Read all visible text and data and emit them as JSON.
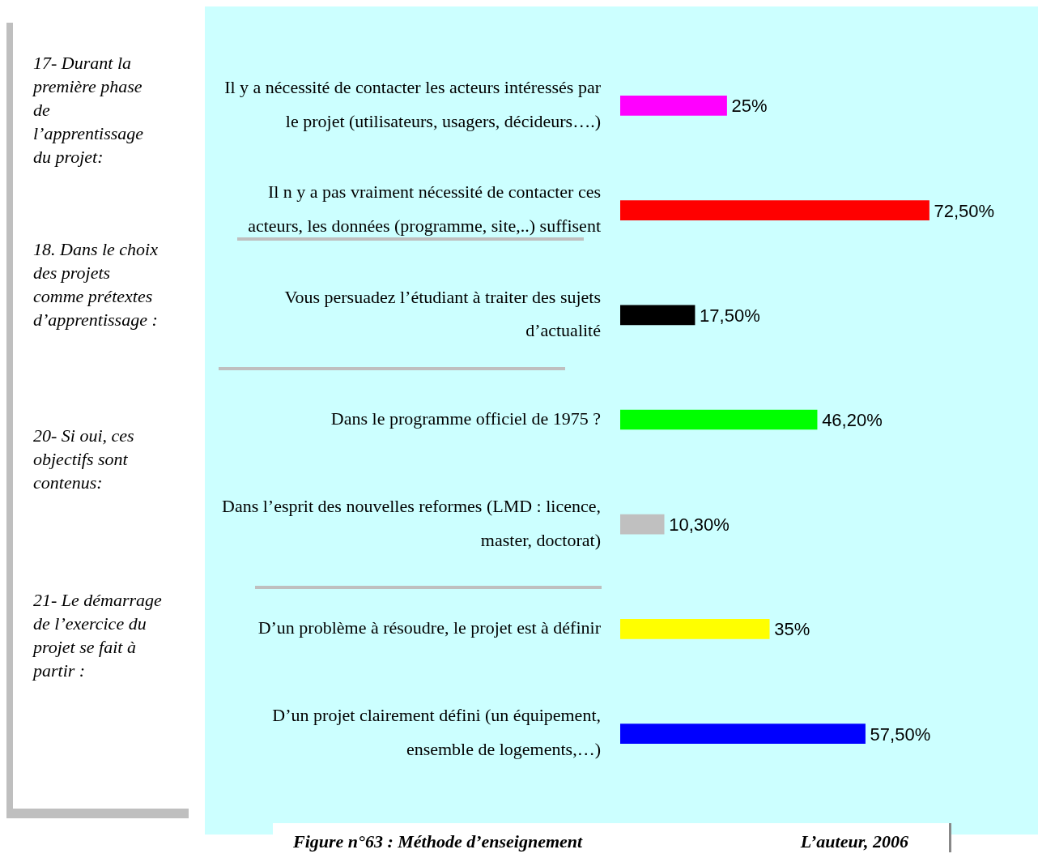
{
  "chart_data": {
    "type": "bar",
    "orientation": "horizontal",
    "categories": [
      "Il y a nécessité de contacter les acteurs intéressés par le projet (utilisateurs, usagers, décideurs….)",
      "Il n y a pas vraiment nécessité de contacter ces acteurs, les données (programme, site,..) suffisent",
      "Vous persuadez l’étudiant à traiter des sujets d’actualité",
      "Dans le programme officiel de 1975 ?",
      "Dans l’esprit des nouvelles reformes (LMD : licence, master, doctorat)",
      "D’un problème à résoudre, le projet est à définir",
      "D’un projet clairement défini (un équipement, ensemble de logements,…)"
    ],
    "values": [
      25,
      72.5,
      17.5,
      46.2,
      10.3,
      35,
      57.5
    ],
    "colors": [
      "#ff00ff",
      "#ff0000",
      "#000000",
      "#00ff00",
      "#c0c0c0",
      "#ffff00",
      "#0000ff"
    ],
    "value_labels": [
      "25%",
      "72,50%",
      "17,50%",
      "46,20%",
      "10,30%",
      "35%",
      "57,50%"
    ],
    "grid": false,
    "legend": false,
    "annotations": [
      "17- Durant la première phase de l’apprentissage du projet:",
      "18. Dans le choix des projets comme prétextes d’apprentissage :",
      "20- Si oui, ces objectifs sont contenus:",
      "21- Le démarrage de l’exercice du projet se fait à partir :",
      "Figure n°63 : Méthode d’enseignement",
      "L’auteur, 2006"
    ]
  }
}
